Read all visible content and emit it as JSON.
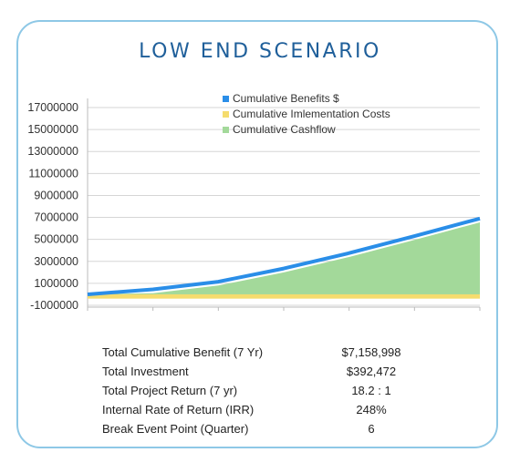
{
  "title": "LOW END SCENARIO",
  "chart_data": {
    "type": "area",
    "x": [
      0,
      1,
      2,
      3,
      4,
      5,
      6
    ],
    "series": [
      {
        "name": "Cumulative Benefits $",
        "color": "#2a8ee8",
        "values": [
          0,
          450000,
          1150000,
          2350000,
          3750000,
          5300000,
          6900000
        ]
      },
      {
        "name": "Cumulative Imlementation Costs",
        "color": "#f5dc6e",
        "values": [
          -392472,
          -392472,
          -392472,
          -392472,
          -392472,
          -392472,
          -392472
        ]
      },
      {
        "name": "Cumulative Cashflow",
        "color": "#a3d99a",
        "values": [
          -150000,
          100000,
          800000,
          2000000,
          3400000,
          4950000,
          6550000
        ]
      }
    ],
    "y_ticks": [
      "17000000",
      "15000000",
      "13000000",
      "11000000",
      "9000000",
      "7000000",
      "5000000",
      "3000000",
      "1000000",
      "-1000000"
    ],
    "ylim": [
      -1000000,
      17000000
    ],
    "legend_position": "top"
  },
  "summary": [
    {
      "label": "Total Cumulative Benefit (7 Yr)",
      "value": "$7,158,998"
    },
    {
      "label": "Total Investment",
      "value": "$392,472"
    },
    {
      "label": "Total Project Return (7 yr)",
      "value": "18.2 : 1"
    },
    {
      "label": "Internal Rate of Return (IRR)",
      "value": "248%"
    },
    {
      "label": "Break Event Point (Quarter)",
      "value": "6"
    }
  ]
}
